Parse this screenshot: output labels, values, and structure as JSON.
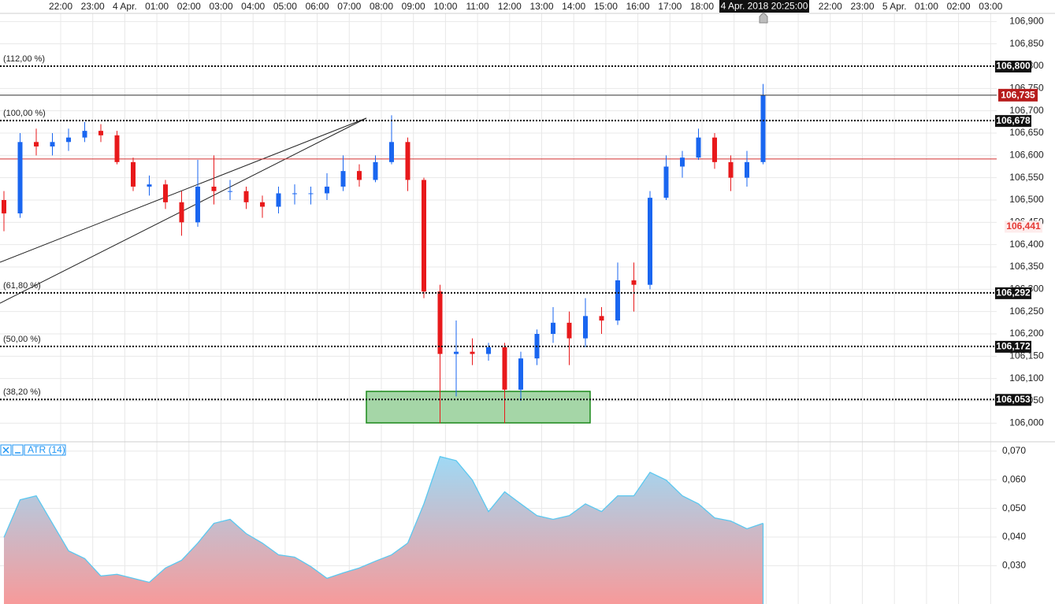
{
  "chart_data": [
    {
      "type": "candlestick",
      "x_labels": [
        "22:00",
        "23:00",
        "4 Apr.",
        "01:00",
        "02:00",
        "03:00",
        "04:00",
        "05:00",
        "06:00",
        "07:00",
        "08:00",
        "09:00",
        "10:00",
        "11:00",
        "12:00",
        "13:00",
        "14:00",
        "15:00",
        "16:00",
        "17:00",
        "18:00",
        null,
        null,
        null,
        "22:00",
        "23:00",
        "5 Apr.",
        "01:00",
        "02:00",
        "03:00"
      ],
      "cursor_label": "4 Apr. 2018 20:25:00",
      "open": [
        106.5,
        106.47,
        106.63,
        106.62,
        106.63,
        106.64,
        106.655,
        106.645,
        106.585,
        106.53,
        106.535,
        106.495,
        106.45,
        106.53,
        106.52,
        106.52,
        106.495,
        106.485,
        106.515,
        106.515,
        106.515,
        106.53,
        106.565,
        106.545,
        106.585,
        106.63,
        106.545,
        106.295,
        106.155,
        106.16,
        106.155,
        106.17,
        106.075,
        106.145,
        106.2,
        106.225,
        106.19,
        106.24,
        106.23,
        106.32,
        106.31,
        106.505,
        106.575,
        106.595,
        106.64,
        106.585,
        106.55,
        106.585
      ],
      "high": [
        106.52,
        106.65,
        106.66,
        106.65,
        106.66,
        106.675,
        106.67,
        106.655,
        106.595,
        106.555,
        106.545,
        106.52,
        106.59,
        106.6,
        106.545,
        106.53,
        106.51,
        106.53,
        106.535,
        106.53,
        106.56,
        106.6,
        106.58,
        106.6,
        106.69,
        106.64,
        106.55,
        106.31,
        106.23,
        106.19,
        106.18,
        106.18,
        106.16,
        106.21,
        106.26,
        106.25,
        106.28,
        106.26,
        106.36,
        106.36,
        106.52,
        106.6,
        106.61,
        106.66,
        106.65,
        106.6,
        106.61,
        106.76
      ],
      "low": [
        106.43,
        106.46,
        106.6,
        106.6,
        106.61,
        106.63,
        106.63,
        106.58,
        106.52,
        106.51,
        106.48,
        106.42,
        106.44,
        106.49,
        106.5,
        106.48,
        106.46,
        106.47,
        106.49,
        106.49,
        106.5,
        106.52,
        106.53,
        106.54,
        106.58,
        106.52,
        106.28,
        106.0,
        106.06,
        106.13,
        106.14,
        106.0,
        106.05,
        106.13,
        106.18,
        106.13,
        106.17,
        106.2,
        106.22,
        106.25,
        106.3,
        106.5,
        106.55,
        106.59,
        106.57,
        106.52,
        106.53,
        106.58
      ],
      "close": [
        106.47,
        106.63,
        106.62,
        106.63,
        106.64,
        106.655,
        106.645,
        106.585,
        106.53,
        106.535,
        106.495,
        106.45,
        106.53,
        106.52,
        106.52,
        106.495,
        106.485,
        106.515,
        106.515,
        106.515,
        106.53,
        106.565,
        106.545,
        106.585,
        106.63,
        106.545,
        106.295,
        106.155,
        106.16,
        106.155,
        106.17,
        106.075,
        106.145,
        106.2,
        106.225,
        106.19,
        106.24,
        106.23,
        106.32,
        106.31,
        106.505,
        106.575,
        106.595,
        106.64,
        106.585,
        106.55,
        106.585,
        106.735
      ],
      "up_color": "#1a66f0",
      "down_color": "#e8191b",
      "ylim": [
        105.96,
        106.92
      ],
      "yticks": [
        {
          "value": 106.0,
          "label": "106,000"
        },
        {
          "value": 106.05,
          "label": "106,050"
        },
        {
          "value": 106.1,
          "label": "106,100"
        },
        {
          "value": 106.15,
          "label": "106,150"
        },
        {
          "value": 106.2,
          "label": "106,200"
        },
        {
          "value": 106.25,
          "label": "106,250"
        },
        {
          "value": 106.3,
          "label": "106,300"
        },
        {
          "value": 106.35,
          "label": "106,350"
        },
        {
          "value": 106.4,
          "label": "106,400"
        },
        {
          "value": 106.45,
          "label": "106,450"
        },
        {
          "value": 106.5,
          "label": "106,500"
        },
        {
          "value": 106.55,
          "label": "106,550"
        },
        {
          "value": 106.6,
          "label": "106,600"
        },
        {
          "value": 106.65,
          "label": "106,650"
        },
        {
          "value": 106.7,
          "label": "106,700"
        },
        {
          "value": 106.75,
          "label": "106,750"
        },
        {
          "value": 106.8,
          "label": "106,800"
        },
        {
          "value": 106.85,
          "label": "106,850"
        },
        {
          "value": 106.9,
          "label": "106,900"
        }
      ],
      "fib_levels": [
        {
          "name": "(112,00 %)",
          "value": 106.8,
          "label": "106,800"
        },
        {
          "name": "(100,00 %)",
          "value": 106.678,
          "label": "106,678"
        },
        {
          "name": "(61,80 %)",
          "value": 106.292,
          "label": "106,292"
        },
        {
          "name": "(50,00 %)",
          "value": 106.172,
          "label": "106,172"
        },
        {
          "name": "(38,20 %)",
          "value": 106.053,
          "label": "106,053"
        }
      ],
      "last_price": {
        "value": 106.735,
        "label": "106,735"
      },
      "marker_price": {
        "value": 106.441,
        "label": "106,441"
      },
      "reference_line": 106.592,
      "grid": true
    },
    {
      "type": "area",
      "name": "ATR (14)",
      "values": [
        0.0399,
        0.053,
        0.0544,
        0.0448,
        0.0352,
        0.0325,
        0.0264,
        0.027,
        0.0256,
        0.0242,
        0.0292,
        0.0319,
        0.0379,
        0.0448,
        0.0462,
        0.0412,
        0.0379,
        0.0338,
        0.033,
        0.0297,
        0.0256,
        0.0275,
        0.0292,
        0.0316,
        0.0338,
        0.0379,
        0.0516,
        0.0681,
        0.0667,
        0.0599,
        0.0489,
        0.0558,
        0.0516,
        0.0475,
        0.0462,
        0.0475,
        0.0516,
        0.0489,
        0.0544,
        0.0544,
        0.0626,
        0.0599,
        0.0544,
        0.0516,
        0.0467,
        0.0456,
        0.0429,
        0.0448
      ],
      "color": "#5bc8f0",
      "ylim": [
        0.018,
        0.073
      ],
      "yticks": [
        {
          "value": 0.03,
          "label": "0,030"
        },
        {
          "value": 0.04,
          "label": "0,040"
        },
        {
          "value": 0.05,
          "label": "0,050"
        },
        {
          "value": 0.06,
          "label": "0,060"
        },
        {
          "value": 0.07,
          "label": "0,070"
        }
      ]
    }
  ]
}
